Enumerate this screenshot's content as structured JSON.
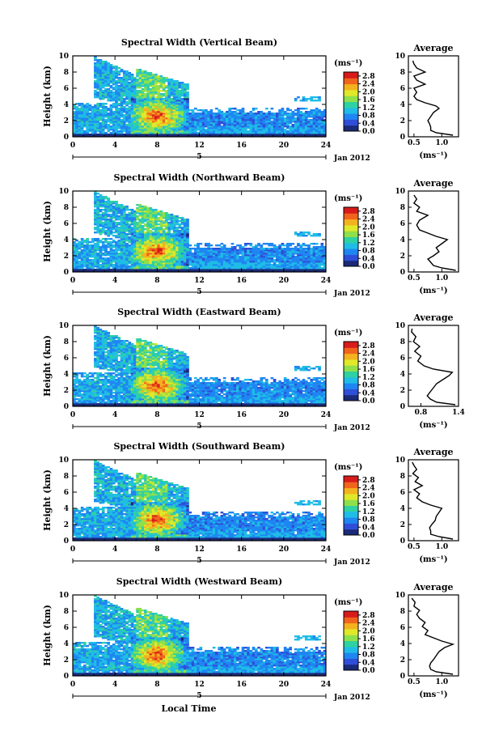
{
  "figure": {
    "xlabel": "Local Time",
    "month_label": "Jan 2012",
    "day_marker": "5",
    "ylabel": "Height (km)",
    "colorbar_unit": "(ms⁻¹)",
    "avg_title": "Average",
    "avg_xlabel": "(ms⁻¹)",
    "colormap": [
      "#1a2a78",
      "#2f4fd8",
      "#1f86f2",
      "#1fbde6",
      "#2fd1a2",
      "#8fe04a",
      "#e0e82a",
      "#f4b21e",
      "#f0641c",
      "#d81b1b"
    ]
  },
  "chart_data": [
    {
      "type": "heatmap",
      "title": "Spectral Width (Vertical Beam)",
      "xlim": [
        0,
        24
      ],
      "ylim": [
        0,
        10
      ],
      "xticks": [
        0,
        4,
        8,
        12,
        16,
        20,
        24
      ],
      "yticks": [
        0,
        2,
        4,
        6,
        8,
        10
      ],
      "clim": [
        0.0,
        3.0
      ],
      "colorbar_ticks": [
        "0.0",
        "0.4",
        "0.8",
        "1.2",
        "1.6",
        "2.0",
        "2.4",
        "2.8"
      ],
      "average": {
        "xlim": [
          0.4,
          1.3
        ],
        "xticks": [
          {
            "v": 0.5,
            "label": "0.5"
          },
          {
            "v": 1.0,
            "label": "1.0"
          }
        ],
        "height": [
          0.2,
          0.5,
          0.8,
          1.2,
          1.6,
          2.0,
          2.5,
          3.0,
          3.5,
          3.8,
          4.2,
          4.6,
          5.0,
          5.5,
          6.0,
          6.5,
          7.0,
          7.5,
          8.0,
          8.5,
          9.0,
          9.4
        ],
        "value": [
          1.2,
          0.9,
          0.8,
          0.8,
          0.78,
          0.75,
          0.8,
          0.85,
          0.95,
          0.9,
          0.7,
          0.55,
          0.5,
          0.55,
          0.5,
          0.7,
          0.55,
          0.5,
          0.7,
          0.55,
          0.5,
          0.48
        ]
      }
    },
    {
      "type": "heatmap",
      "title": "Spectral Width (Northward Beam)",
      "xlim": [
        0,
        24
      ],
      "ylim": [
        0,
        10
      ],
      "xticks": [
        0,
        4,
        8,
        12,
        16,
        20,
        24
      ],
      "yticks": [
        0,
        2,
        4,
        6,
        8,
        10
      ],
      "clim": [
        0.0,
        3.0
      ],
      "colorbar_ticks": [
        "0.0",
        "0.4",
        "0.8",
        "1.2",
        "1.6",
        "2.0",
        "2.4",
        "2.8"
      ],
      "average": {
        "xlim": [
          0.4,
          1.3
        ],
        "xticks": [
          {
            "v": 0.5,
            "label": "0.5"
          },
          {
            "v": 1.0,
            "label": "1.0"
          }
        ],
        "height": [
          0.2,
          0.5,
          0.8,
          1.2,
          1.6,
          2.0,
          2.5,
          3.0,
          3.5,
          4.0,
          4.4,
          4.8,
          5.2,
          5.8,
          6.4,
          7.0,
          7.5,
          8.0,
          8.5,
          9.0,
          9.5
        ],
        "value": [
          1.25,
          1.0,
          0.85,
          0.8,
          0.75,
          0.85,
          0.95,
          0.9,
          1.0,
          1.1,
          0.9,
          0.75,
          0.6,
          0.55,
          0.6,
          0.75,
          0.55,
          0.6,
          0.5,
          0.55,
          0.5
        ]
      }
    },
    {
      "type": "heatmap",
      "title": "Spectral Width (Eastward Beam)",
      "xlim": [
        0,
        24
      ],
      "ylim": [
        0,
        10
      ],
      "xticks": [
        0,
        4,
        8,
        12,
        16,
        20,
        24
      ],
      "yticks": [
        0,
        2,
        4,
        6,
        8,
        10
      ],
      "clim": [
        0.0,
        3.0
      ],
      "colorbar_ticks": [
        "0.0",
        "0.4",
        "0.8",
        "1.2",
        "1.6",
        "2.0",
        "2.4",
        "2.8"
      ],
      "average": {
        "xlim": [
          0.6,
          1.4
        ],
        "xticks": [
          {
            "v": 0.8,
            "label": "0.8"
          },
          {
            "v": 1.4,
            "label": "1.4"
          }
        ],
        "height": [
          0.2,
          0.5,
          0.9,
          1.3,
          1.8,
          2.3,
          2.8,
          3.3,
          3.8,
          4.2,
          4.6,
          5.0,
          5.6,
          6.2,
          6.8,
          7.4,
          8.0,
          8.6,
          9.2,
          9.6
        ],
        "value": [
          1.35,
          1.05,
          0.95,
          0.9,
          0.95,
          1.0,
          1.05,
          1.15,
          1.25,
          1.3,
          1.0,
          0.85,
          0.75,
          0.8,
          0.7,
          0.78,
          0.68,
          0.72,
          0.65,
          0.66
        ]
      }
    },
    {
      "type": "heatmap",
      "title": "Spectral Width (Southward Beam)",
      "xlim": [
        0,
        24
      ],
      "ylim": [
        0,
        10
      ],
      "xticks": [
        0,
        4,
        8,
        12,
        16,
        20,
        24
      ],
      "yticks": [
        0,
        2,
        4,
        6,
        8,
        10
      ],
      "clim": [
        0.0,
        3.0
      ],
      "colorbar_ticks": [
        "0.0",
        "0.4",
        "0.8",
        "1.2",
        "1.6",
        "2.0",
        "2.4",
        "2.8"
      ],
      "average": {
        "xlim": [
          0.4,
          1.3
        ],
        "xticks": [
          {
            "v": 0.5,
            "label": "0.5"
          },
          {
            "v": 1.0,
            "label": "1.0"
          }
        ],
        "height": [
          0.2,
          0.5,
          0.8,
          1.2,
          1.6,
          2.0,
          2.5,
          3.0,
          3.5,
          4.0,
          4.4,
          4.8,
          5.3,
          5.8,
          6.3,
          6.8,
          7.3,
          7.8,
          8.3,
          8.8,
          9.3,
          9.7
        ],
        "value": [
          1.2,
          0.95,
          0.8,
          0.8,
          0.78,
          0.82,
          0.88,
          0.9,
          0.95,
          1.0,
          0.8,
          0.65,
          0.55,
          0.6,
          0.5,
          0.65,
          0.52,
          0.58,
          0.48,
          0.55,
          0.5,
          0.47
        ]
      }
    },
    {
      "type": "heatmap",
      "title": "Spectral Width (Westward Beam)",
      "xlim": [
        0,
        24
      ],
      "ylim": [
        0,
        10
      ],
      "xticks": [
        0,
        4,
        8,
        12,
        16,
        20,
        24
      ],
      "yticks": [
        0,
        2,
        4,
        6,
        8,
        10
      ],
      "clim": [
        0.0,
        3.0
      ],
      "colorbar_ticks": [
        "0.0",
        "0.4",
        "0.8",
        "1.2",
        "1.6",
        "2.0",
        "2.4",
        "2.8"
      ],
      "average": {
        "xlim": [
          0.4,
          1.3
        ],
        "xticks": [
          {
            "v": 0.5,
            "label": "0.5"
          },
          {
            "v": 1.0,
            "label": "1.0"
          }
        ],
        "height": [
          0.2,
          0.5,
          0.8,
          1.2,
          1.6,
          2.0,
          2.5,
          3.0,
          3.5,
          3.9,
          4.3,
          4.7,
          5.1,
          5.6,
          6.1,
          6.6,
          7.1,
          7.6,
          8.1,
          8.6,
          9.1,
          9.6
        ],
        "value": [
          1.2,
          0.9,
          0.8,
          0.78,
          0.8,
          0.85,
          0.9,
          0.95,
          1.05,
          1.2,
          1.0,
          0.85,
          0.7,
          0.75,
          0.65,
          0.7,
          0.6,
          0.55,
          0.6,
          0.5,
          0.52,
          0.46
        ]
      }
    }
  ]
}
